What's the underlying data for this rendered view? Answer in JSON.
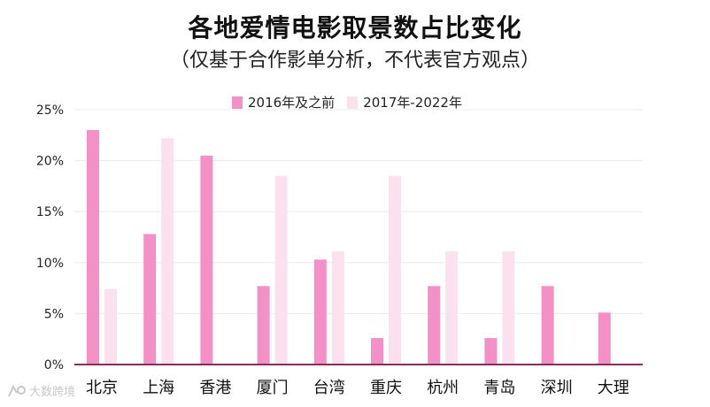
{
  "chart_data": {
    "type": "bar",
    "title": "各地爱情电影取景数占比变化",
    "subtitle": "（仅基于合作影单分析，不代表官方观点）",
    "categories": [
      "北京",
      "上海",
      "香港",
      "厦门",
      "台湾",
      "重庆",
      "杭州",
      "青岛",
      "深圳",
      "大理"
    ],
    "series": [
      {
        "name": "2016年及之前",
        "color": "#f391c6",
        "values": [
          23.0,
          12.8,
          20.5,
          7.7,
          10.3,
          2.6,
          7.7,
          2.6,
          7.7,
          5.1
        ]
      },
      {
        "name": "2017年-2022年",
        "color": "#fbe0ee",
        "values": [
          7.4,
          22.2,
          0,
          18.5,
          11.1,
          18.5,
          11.1,
          11.1,
          0,
          0
        ]
      }
    ],
    "ylim": [
      0,
      25
    ],
    "yticks": [
      0,
      5,
      10,
      15,
      20,
      25
    ],
    "ytick_labels": [
      "0%",
      "5%",
      "10%",
      "15%",
      "20%",
      "25%"
    ],
    "grid": true,
    "legend_position": "top-center",
    "axis_color": "#8b2c5c",
    "grid_color": "#ececec"
  },
  "watermark": {
    "text": "大数跨境",
    "icon": "logo-icon"
  }
}
